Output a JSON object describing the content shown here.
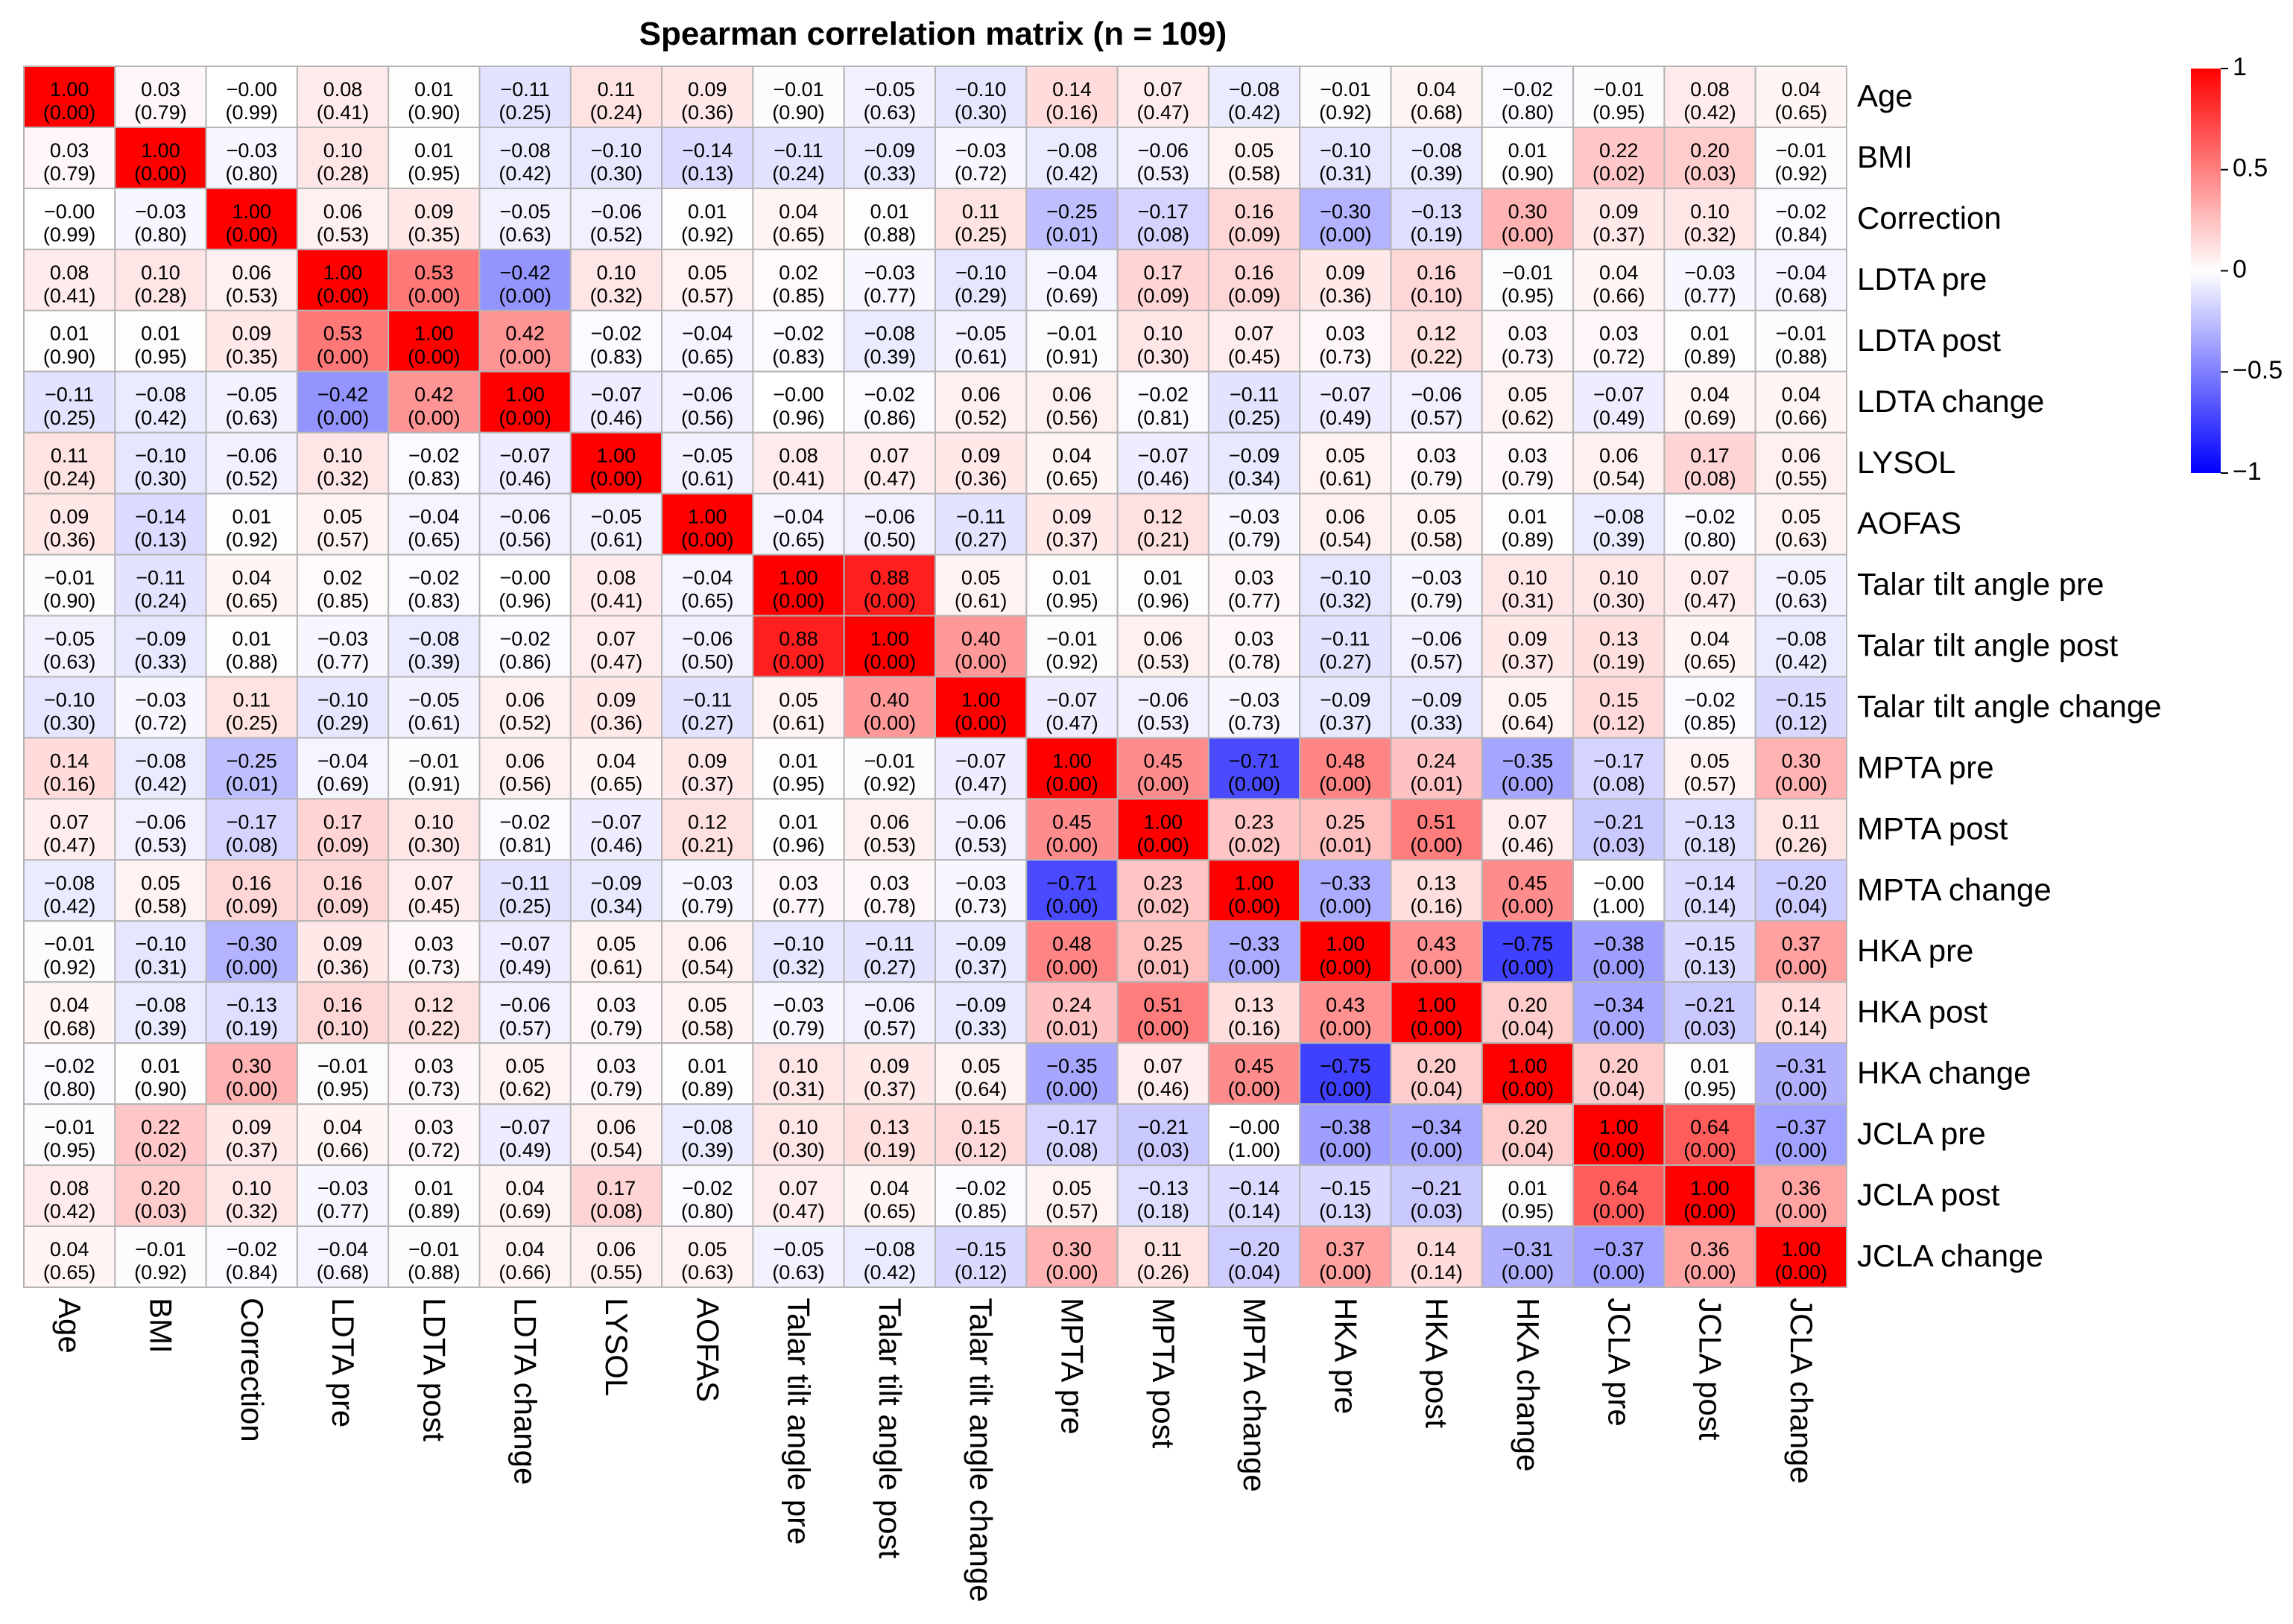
{
  "chart_data": {
    "type": "heatmap",
    "title": "Spearman correlation matrix (n = 109)",
    "variables": [
      "Age",
      "BMI",
      "Correction",
      "LDTA pre",
      "LDTA post",
      "LDTA change",
      "LYSOL",
      "AOFAS",
      "Talar tilt angle  pre",
      "Talar tilt angle post",
      "Talar tilt angle change",
      "MPTA pre",
      "MPTA post",
      "MPTA change",
      "HKA pre",
      "HKA post",
      "HKA change",
      "JCLA pre",
      "JCLA post",
      "JCLA change"
    ],
    "values": [
      [
        "1.00",
        "0.03",
        "−0.00",
        "0.08",
        "0.01",
        "−0.11",
        "0.11",
        "0.09",
        "−0.01",
        "−0.05",
        "−0.10",
        "0.14",
        "0.07",
        "−0.08",
        "−0.01",
        "0.04",
        "−0.02",
        "−0.01",
        "0.08",
        "0.04"
      ],
      [
        "0.03",
        "1.00",
        "−0.03",
        "0.10",
        "0.01",
        "−0.08",
        "−0.10",
        "−0.14",
        "−0.11",
        "−0.09",
        "−0.03",
        "−0.08",
        "−0.06",
        "0.05",
        "−0.10",
        "−0.08",
        "0.01",
        "0.22",
        "0.20",
        "−0.01"
      ],
      [
        "−0.00",
        "−0.03",
        "1.00",
        "0.06",
        "0.09",
        "−0.05",
        "−0.06",
        "0.01",
        "0.04",
        "0.01",
        "0.11",
        "−0.25",
        "−0.17",
        "0.16",
        "−0.30",
        "−0.13",
        "0.30",
        "0.09",
        "0.10",
        "−0.02"
      ],
      [
        "0.08",
        "0.10",
        "0.06",
        "1.00",
        "0.53",
        "−0.42",
        "0.10",
        "0.05",
        "0.02",
        "−0.03",
        "−0.10",
        "−0.04",
        "0.17",
        "0.16",
        "0.09",
        "0.16",
        "−0.01",
        "0.04",
        "−0.03",
        "−0.04"
      ],
      [
        "0.01",
        "0.01",
        "0.09",
        "0.53",
        "1.00",
        "0.42",
        "−0.02",
        "−0.04",
        "−0.02",
        "−0.08",
        "−0.05",
        "−0.01",
        "0.10",
        "0.07",
        "0.03",
        "0.12",
        "0.03",
        "0.03",
        "0.01",
        "−0.01"
      ],
      [
        "−0.11",
        "−0.08",
        "−0.05",
        "−0.42",
        "0.42",
        "1.00",
        "−0.07",
        "−0.06",
        "−0.00",
        "−0.02",
        "0.06",
        "0.06",
        "−0.02",
        "−0.11",
        "−0.07",
        "−0.06",
        "0.05",
        "−0.07",
        "0.04",
        "0.04"
      ],
      [
        "0.11",
        "−0.10",
        "−0.06",
        "0.10",
        "−0.02",
        "−0.07",
        "1.00",
        "−0.05",
        "0.08",
        "0.07",
        "0.09",
        "0.04",
        "−0.07",
        "−0.09",
        "0.05",
        "0.03",
        "0.03",
        "0.06",
        "0.17",
        "0.06"
      ],
      [
        "0.09",
        "−0.14",
        "0.01",
        "0.05",
        "−0.04",
        "−0.06",
        "−0.05",
        "1.00",
        "−0.04",
        "−0.06",
        "−0.11",
        "0.09",
        "0.12",
        "−0.03",
        "0.06",
        "0.05",
        "0.01",
        "−0.08",
        "−0.02",
        "0.05"
      ],
      [
        "−0.01",
        "−0.11",
        "0.04",
        "0.02",
        "−0.02",
        "−0.00",
        "0.08",
        "−0.04",
        "1.00",
        "0.88",
        "0.05",
        "0.01",
        "0.01",
        "0.03",
        "−0.10",
        "−0.03",
        "0.10",
        "0.10",
        "0.07",
        "−0.05"
      ],
      [
        "−0.05",
        "−0.09",
        "0.01",
        "−0.03",
        "−0.08",
        "−0.02",
        "0.07",
        "−0.06",
        "0.88",
        "1.00",
        "0.40",
        "−0.01",
        "0.06",
        "0.03",
        "−0.11",
        "−0.06",
        "0.09",
        "0.13",
        "0.04",
        "−0.08"
      ],
      [
        "−0.10",
        "−0.03",
        "0.11",
        "−0.10",
        "−0.05",
        "0.06",
        "0.09",
        "−0.11",
        "0.05",
        "0.40",
        "1.00",
        "−0.07",
        "−0.06",
        "−0.03",
        "−0.09",
        "−0.09",
        "0.05",
        "0.15",
        "−0.02",
        "−0.15"
      ],
      [
        "0.14",
        "−0.08",
        "−0.25",
        "−0.04",
        "−0.01",
        "0.06",
        "0.04",
        "0.09",
        "0.01",
        "−0.01",
        "−0.07",
        "1.00",
        "0.45",
        "−0.71",
        "0.48",
        "0.24",
        "−0.35",
        "−0.17",
        "0.05",
        "0.30"
      ],
      [
        "0.07",
        "−0.06",
        "−0.17",
        "0.17",
        "0.10",
        "−0.02",
        "−0.07",
        "0.12",
        "0.01",
        "0.06",
        "−0.06",
        "0.45",
        "1.00",
        "0.23",
        "0.25",
        "0.51",
        "0.07",
        "−0.21",
        "−0.13",
        "0.11"
      ],
      [
        "−0.08",
        "0.05",
        "0.16",
        "0.16",
        "0.07",
        "−0.11",
        "−0.09",
        "−0.03",
        "0.03",
        "0.03",
        "−0.03",
        "−0.71",
        "0.23",
        "1.00",
        "−0.33",
        "0.13",
        "0.45",
        "−0.00",
        "−0.14",
        "−0.20"
      ],
      [
        "−0.01",
        "−0.10",
        "−0.30",
        "0.09",
        "0.03",
        "−0.07",
        "0.05",
        "0.06",
        "−0.10",
        "−0.11",
        "−0.09",
        "0.48",
        "0.25",
        "−0.33",
        "1.00",
        "0.43",
        "−0.75",
        "−0.38",
        "−0.15",
        "0.37"
      ],
      [
        "0.04",
        "−0.08",
        "−0.13",
        "0.16",
        "0.12",
        "−0.06",
        "0.03",
        "0.05",
        "−0.03",
        "−0.06",
        "−0.09",
        "0.24",
        "0.51",
        "0.13",
        "0.43",
        "1.00",
        "0.20",
        "−0.34",
        "−0.21",
        "0.14"
      ],
      [
        "−0.02",
        "0.01",
        "0.30",
        "−0.01",
        "0.03",
        "0.05",
        "0.03",
        "0.01",
        "0.10",
        "0.09",
        "0.05",
        "−0.35",
        "0.07",
        "0.45",
        "−0.75",
        "0.20",
        "1.00",
        "0.20",
        "0.01",
        "−0.31"
      ],
      [
        "−0.01",
        "0.22",
        "0.09",
        "0.04",
        "0.03",
        "−0.07",
        "0.06",
        "−0.08",
        "0.10",
        "0.13",
        "0.15",
        "−0.17",
        "−0.21",
        "−0.00",
        "−0.38",
        "−0.34",
        "0.20",
        "1.00",
        "0.64",
        "−0.37"
      ],
      [
        "0.08",
        "0.20",
        "0.10",
        "−0.03",
        "0.01",
        "0.04",
        "0.17",
        "−0.02",
        "0.07",
        "0.04",
        "−0.02",
        "0.05",
        "−0.13",
        "−0.14",
        "−0.15",
        "−0.21",
        "0.01",
        "0.64",
        "1.00",
        "0.36"
      ],
      [
        "0.04",
        "−0.01",
        "−0.02",
        "−0.04",
        "−0.01",
        "0.04",
        "0.06",
        "0.05",
        "−0.05",
        "−0.08",
        "−0.15",
        "0.30",
        "0.11",
        "−0.20",
        "0.37",
        "0.14",
        "−0.31",
        "−0.37",
        "0.36",
        "1.00"
      ]
    ],
    "p_values": [
      [
        "(0.00)",
        "(0.79)",
        "(0.99)",
        "(0.41)",
        "(0.90)",
        "(0.25)",
        "(0.24)",
        "(0.36)",
        "(0.90)",
        "(0.63)",
        "(0.30)",
        "(0.16)",
        "(0.47)",
        "(0.42)",
        "(0.92)",
        "(0.68)",
        "(0.80)",
        "(0.95)",
        "(0.42)",
        "(0.65)"
      ],
      [
        "(0.79)",
        "(0.00)",
        "(0.80)",
        "(0.28)",
        "(0.95)",
        "(0.42)",
        "(0.30)",
        "(0.13)",
        "(0.24)",
        "(0.33)",
        "(0.72)",
        "(0.42)",
        "(0.53)",
        "(0.58)",
        "(0.31)",
        "(0.39)",
        "(0.90)",
        "(0.02)",
        "(0.03)",
        "(0.92)"
      ],
      [
        "(0.99)",
        "(0.80)",
        "(0.00)",
        "(0.53)",
        "(0.35)",
        "(0.63)",
        "(0.52)",
        "(0.92)",
        "(0.65)",
        "(0.88)",
        "(0.25)",
        "(0.01)",
        "(0.08)",
        "(0.09)",
        "(0.00)",
        "(0.19)",
        "(0.00)",
        "(0.37)",
        "(0.32)",
        "(0.84)"
      ],
      [
        "(0.41)",
        "(0.28)",
        "(0.53)",
        "(0.00)",
        "(0.00)",
        "(0.00)",
        "(0.32)",
        "(0.57)",
        "(0.85)",
        "(0.77)",
        "(0.29)",
        "(0.69)",
        "(0.09)",
        "(0.09)",
        "(0.36)",
        "(0.10)",
        "(0.95)",
        "(0.66)",
        "(0.77)",
        "(0.68)"
      ],
      [
        "(0.90)",
        "(0.95)",
        "(0.35)",
        "(0.00)",
        "(0.00)",
        "(0.00)",
        "(0.83)",
        "(0.65)",
        "(0.83)",
        "(0.39)",
        "(0.61)",
        "(0.91)",
        "(0.30)",
        "(0.45)",
        "(0.73)",
        "(0.22)",
        "(0.73)",
        "(0.72)",
        "(0.89)",
        "(0.88)"
      ],
      [
        "(0.25)",
        "(0.42)",
        "(0.63)",
        "(0.00)",
        "(0.00)",
        "(0.00)",
        "(0.46)",
        "(0.56)",
        "(0.96)",
        "(0.86)",
        "(0.52)",
        "(0.56)",
        "(0.81)",
        "(0.25)",
        "(0.49)",
        "(0.57)",
        "(0.62)",
        "(0.49)",
        "(0.69)",
        "(0.66)"
      ],
      [
        "(0.24)",
        "(0.30)",
        "(0.52)",
        "(0.32)",
        "(0.83)",
        "(0.46)",
        "(0.00)",
        "(0.61)",
        "(0.41)",
        "(0.47)",
        "(0.36)",
        "(0.65)",
        "(0.46)",
        "(0.34)",
        "(0.61)",
        "(0.79)",
        "(0.79)",
        "(0.54)",
        "(0.08)",
        "(0.55)"
      ],
      [
        "(0.36)",
        "(0.13)",
        "(0.92)",
        "(0.57)",
        "(0.65)",
        "(0.56)",
        "(0.61)",
        "(0.00)",
        "(0.65)",
        "(0.50)",
        "(0.27)",
        "(0.37)",
        "(0.21)",
        "(0.79)",
        "(0.54)",
        "(0.58)",
        "(0.89)",
        "(0.39)",
        "(0.80)",
        "(0.63)"
      ],
      [
        "(0.90)",
        "(0.24)",
        "(0.65)",
        "(0.85)",
        "(0.83)",
        "(0.96)",
        "(0.41)",
        "(0.65)",
        "(0.00)",
        "(0.00)",
        "(0.61)",
        "(0.95)",
        "(0.96)",
        "(0.77)",
        "(0.32)",
        "(0.79)",
        "(0.31)",
        "(0.30)",
        "(0.47)",
        "(0.63)"
      ],
      [
        "(0.63)",
        "(0.33)",
        "(0.88)",
        "(0.77)",
        "(0.39)",
        "(0.86)",
        "(0.47)",
        "(0.50)",
        "(0.00)",
        "(0.00)",
        "(0.00)",
        "(0.92)",
        "(0.53)",
        "(0.78)",
        "(0.27)",
        "(0.57)",
        "(0.37)",
        "(0.19)",
        "(0.65)",
        "(0.42)"
      ],
      [
        "(0.30)",
        "(0.72)",
        "(0.25)",
        "(0.29)",
        "(0.61)",
        "(0.52)",
        "(0.36)",
        "(0.27)",
        "(0.61)",
        "(0.00)",
        "(0.00)",
        "(0.47)",
        "(0.53)",
        "(0.73)",
        "(0.37)",
        "(0.33)",
        "(0.64)",
        "(0.12)",
        "(0.85)",
        "(0.12)"
      ],
      [
        "(0.16)",
        "(0.42)",
        "(0.01)",
        "(0.69)",
        "(0.91)",
        "(0.56)",
        "(0.65)",
        "(0.37)",
        "(0.95)",
        "(0.92)",
        "(0.47)",
        "(0.00)",
        "(0.00)",
        "(0.00)",
        "(0.00)",
        "(0.01)",
        "(0.00)",
        "(0.08)",
        "(0.57)",
        "(0.00)"
      ],
      [
        "(0.47)",
        "(0.53)",
        "(0.08)",
        "(0.09)",
        "(0.30)",
        "(0.81)",
        "(0.46)",
        "(0.21)",
        "(0.96)",
        "(0.53)",
        "(0.53)",
        "(0.00)",
        "(0.00)",
        "(0.02)",
        "(0.01)",
        "(0.00)",
        "(0.46)",
        "(0.03)",
        "(0.18)",
        "(0.26)"
      ],
      [
        "(0.42)",
        "(0.58)",
        "(0.09)",
        "(0.09)",
        "(0.45)",
        "(0.25)",
        "(0.34)",
        "(0.79)",
        "(0.77)",
        "(0.78)",
        "(0.73)",
        "(0.00)",
        "(0.02)",
        "(0.00)",
        "(0.00)",
        "(0.16)",
        "(0.00)",
        "(1.00)",
        "(0.14)",
        "(0.04)"
      ],
      [
        "(0.92)",
        "(0.31)",
        "(0.00)",
        "(0.36)",
        "(0.73)",
        "(0.49)",
        "(0.61)",
        "(0.54)",
        "(0.32)",
        "(0.27)",
        "(0.37)",
        "(0.00)",
        "(0.01)",
        "(0.00)",
        "(0.00)",
        "(0.00)",
        "(0.00)",
        "(0.00)",
        "(0.13)",
        "(0.00)"
      ],
      [
        "(0.68)",
        "(0.39)",
        "(0.19)",
        "(0.10)",
        "(0.22)",
        "(0.57)",
        "(0.79)",
        "(0.58)",
        "(0.79)",
        "(0.57)",
        "(0.33)",
        "(0.01)",
        "(0.00)",
        "(0.16)",
        "(0.00)",
        "(0.00)",
        "(0.04)",
        "(0.00)",
        "(0.03)",
        "(0.14)"
      ],
      [
        "(0.80)",
        "(0.90)",
        "(0.00)",
        "(0.95)",
        "(0.73)",
        "(0.62)",
        "(0.79)",
        "(0.89)",
        "(0.31)",
        "(0.37)",
        "(0.64)",
        "(0.00)",
        "(0.46)",
        "(0.00)",
        "(0.00)",
        "(0.04)",
        "(0.00)",
        "(0.04)",
        "(0.95)",
        "(0.00)"
      ],
      [
        "(0.95)",
        "(0.02)",
        "(0.37)",
        "(0.66)",
        "(0.72)",
        "(0.49)",
        "(0.54)",
        "(0.39)",
        "(0.30)",
        "(0.19)",
        "(0.12)",
        "(0.08)",
        "(0.03)",
        "(1.00)",
        "(0.00)",
        "(0.00)",
        "(0.04)",
        "(0.00)",
        "(0.00)",
        "(0.00)"
      ],
      [
        "(0.42)",
        "(0.03)",
        "(0.32)",
        "(0.77)",
        "(0.89)",
        "(0.69)",
        "(0.08)",
        "(0.80)",
        "(0.47)",
        "(0.65)",
        "(0.85)",
        "(0.57)",
        "(0.18)",
        "(0.14)",
        "(0.13)",
        "(0.03)",
        "(0.95)",
        "(0.00)",
        "(0.00)",
        "(0.00)"
      ],
      [
        "(0.65)",
        "(0.92)",
        "(0.84)",
        "(0.68)",
        "(0.88)",
        "(0.66)",
        "(0.55)",
        "(0.63)",
        "(0.63)",
        "(0.42)",
        "(0.12)",
        "(0.00)",
        "(0.26)",
        "(0.04)",
        "(0.00)",
        "(0.14)",
        "(0.00)",
        "(0.00)",
        "(0.00)",
        "(0.00)"
      ]
    ],
    "colorbar": {
      "ticks": [
        {
          "value": 1,
          "label": "1"
        },
        {
          "value": 0.5,
          "label": "0.5"
        },
        {
          "value": 0,
          "label": "0"
        },
        {
          "value": -0.5,
          "label": "−0.5"
        },
        {
          "value": -1,
          "label": "−1"
        }
      ],
      "range": [
        -1,
        1
      ]
    },
    "colors": {
      "positive": "#ff0000",
      "neutral": "#ffffff",
      "negative": "#0000ff",
      "grid": "#b4b4b4"
    }
  }
}
